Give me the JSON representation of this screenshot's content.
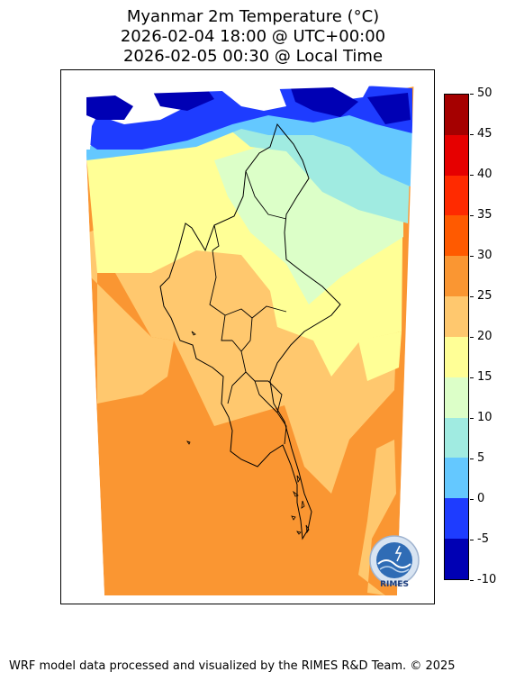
{
  "title": {
    "line1": "Myanmar 2m Temperature (°C)",
    "line2": "2026-02-04 18:00 @ UTC+00:00",
    "line3": "2026-02-05 00:30 @ Local Time"
  },
  "colorbar": {
    "ticks": [
      "50",
      "45",
      "40",
      "35",
      "30",
      "25",
      "20",
      "15",
      "10",
      "5",
      "0",
      "-5",
      "-10"
    ],
    "colors": [
      "#a50000",
      "#e60000",
      "#ff2a00",
      "#ff5a00",
      "#fa9632",
      "#ffc86e",
      "#ffff96",
      "#dcffc8",
      "#a0ebe1",
      "#64c8ff",
      "#1e3cff",
      "#0000b4"
    ]
  },
  "map": {
    "region": "Myanmar",
    "variable": "2m Temperature",
    "unit": "°C"
  },
  "logo": {
    "text": "RIMES"
  },
  "footer": {
    "text": "WRF model data processed and visualized by the RIMES R&D Team. © 2025"
  }
}
